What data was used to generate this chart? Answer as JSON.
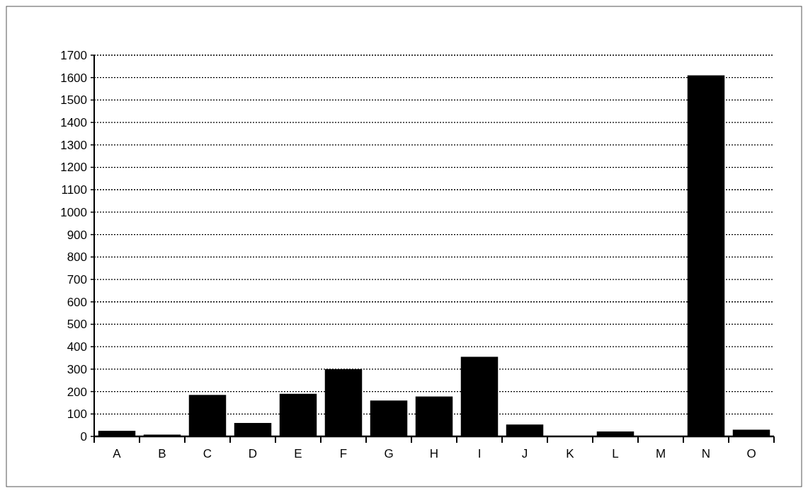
{
  "chart_data": {
    "type": "bar",
    "categories": [
      "A",
      "B",
      "C",
      "D",
      "E",
      "F",
      "G",
      "H",
      "I",
      "J",
      "K",
      "L",
      "M",
      "N",
      "O"
    ],
    "values": [
      25,
      8,
      185,
      60,
      190,
      300,
      160,
      178,
      355,
      53,
      2,
      22,
      2,
      1610,
      30
    ],
    "color": "#000000",
    "ylim": [
      0,
      1700
    ],
    "yticks": [
      0,
      100,
      200,
      300,
      400,
      500,
      600,
      700,
      800,
      900,
      1000,
      1100,
      1200,
      1300,
      1400,
      1500,
      1600,
      1700
    ],
    "grid": "y"
  }
}
